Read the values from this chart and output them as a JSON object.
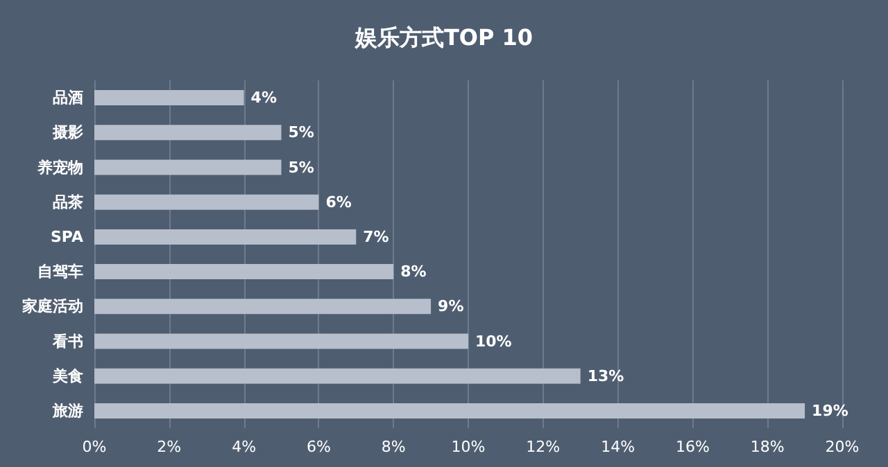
{
  "chart_data": {
    "type": "bar",
    "orientation": "horizontal",
    "title": "娱乐方式TOP 10",
    "categories": [
      "品酒",
      "摄影",
      "养宠物",
      "品茶",
      "SPA",
      "自驾车",
      "家庭活动",
      "看书",
      "美食",
      "旅游"
    ],
    "values": [
      4,
      5,
      5,
      6,
      7,
      8,
      9,
      10,
      13,
      19
    ],
    "value_labels": [
      "4%",
      "5%",
      "5%",
      "6%",
      "7%",
      "8%",
      "9%",
      "10%",
      "13%",
      "19%"
    ],
    "color": "#b7bfcc",
    "xlim": [
      0,
      20
    ],
    "xticks": [
      {
        "value": 0,
        "label": "0%"
      },
      {
        "value": 2,
        "label": "2%"
      },
      {
        "value": 4,
        "label": "4%"
      },
      {
        "value": 6,
        "label": "6%"
      },
      {
        "value": 8,
        "label": "8%"
      },
      {
        "value": 10,
        "label": "10%"
      },
      {
        "value": 12,
        "label": "12%"
      },
      {
        "value": 14,
        "label": "14%"
      },
      {
        "value": 16,
        "label": "16%"
      },
      {
        "value": 18,
        "label": "18%"
      },
      {
        "value": 20,
        "label": "20%"
      }
    ],
    "grid": "x"
  }
}
